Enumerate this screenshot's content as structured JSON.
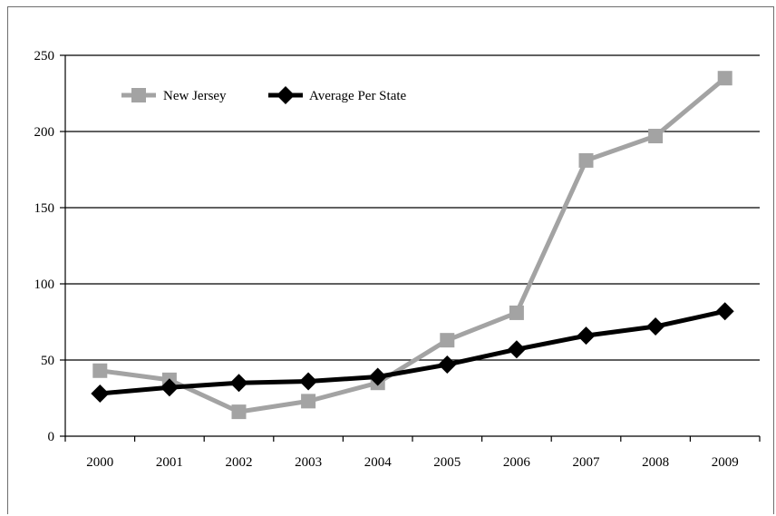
{
  "chart_data": {
    "type": "line",
    "title": "",
    "xlabel": "",
    "ylabel": "",
    "categories": [
      "2000",
      "2001",
      "2002",
      "2003",
      "2004",
      "2005",
      "2006",
      "2007",
      "2008",
      "2009"
    ],
    "ylim": [
      0,
      250
    ],
    "yticks": [
      "0",
      "50",
      "100",
      "150",
      "200",
      "250"
    ],
    "grid": "horizontal",
    "legend_position": "top-left",
    "series": [
      {
        "name": "New Jersey",
        "color": "#a3a3a3",
        "marker": "square",
        "values": [
          43,
          37,
          16,
          23,
          35,
          63,
          81,
          181,
          197,
          235
        ]
      },
      {
        "name": "Average Per State",
        "color": "#000000",
        "marker": "diamond",
        "values": [
          28,
          32,
          35,
          36,
          39,
          47,
          57,
          66,
          72,
          82
        ]
      }
    ]
  }
}
